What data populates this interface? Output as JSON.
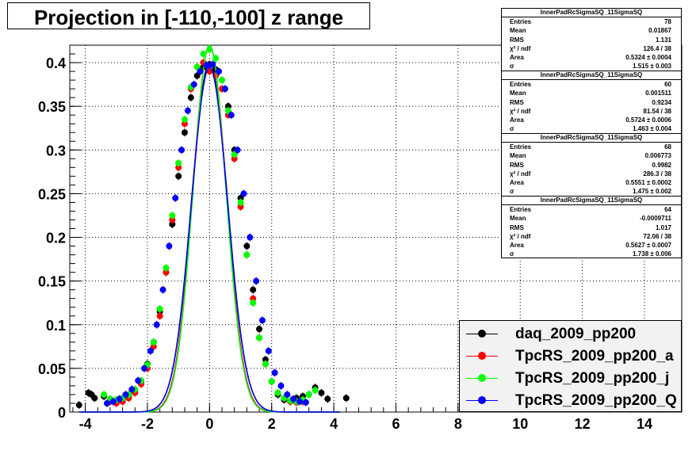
{
  "title": "Projection in [-110,-100] z range",
  "colors": {
    "black": "#000000",
    "red": "#ff0000",
    "green": "#00ff00",
    "blue": "#0000ff"
  },
  "stat_boxes": [
    {
      "header": "InnerPadRcSigmaSQ_11SigmaSQ",
      "rows": [
        [
          "Entries",
          "78"
        ],
        [
          "Mean",
          "0.01867"
        ],
        [
          "RMS",
          "1.131"
        ],
        [
          "χ² / ndf",
          "126.4 / 38"
        ],
        [
          "Area",
          "0.5324 ± 0.0004"
        ],
        [
          "σ",
          "1.515 ± 0.003"
        ]
      ]
    },
    {
      "header": "InnerPadRcSigmaSQ_11SigmaSQ",
      "rows": [
        [
          "Entries",
          "60"
        ],
        [
          "Mean",
          "0.001511"
        ],
        [
          "RMS",
          "0.9234"
        ],
        [
          "χ² / ndf",
          "81.54 / 38"
        ],
        [
          "Area",
          "0.5724 ± 0.0006"
        ],
        [
          "σ",
          "1.463 ± 0.004"
        ]
      ]
    },
    {
      "header": "InnerPadRcSigmaSQ_11SigmaSQ",
      "rows": [
        [
          "Entries",
          "68"
        ],
        [
          "Mean",
          "0.006773"
        ],
        [
          "RMS",
          "0.9982"
        ],
        [
          "χ² / ndf",
          "286.3 / 38"
        ],
        [
          "Area",
          "0.5551 ± 0.0002"
        ],
        [
          "σ",
          "1.475 ± 0.002"
        ]
      ]
    },
    {
      "header": "InnerPadRcSigmaSQ_11SigmaSQ",
      "rows": [
        [
          "Entries",
          "64"
        ],
        [
          "Mean",
          "-0.0009711"
        ],
        [
          "RMS",
          "1.017"
        ],
        [
          "χ² / ndf",
          "72.06 / 38"
        ],
        [
          "Area",
          "0.5627 ± 0.0007"
        ],
        [
          "σ",
          "1.738 ± 0.006"
        ]
      ]
    }
  ],
  "chart_data": {
    "type": "scatter",
    "title": "Projection in [-110,-100] z range",
    "xlabel": "",
    "ylabel": "",
    "xlim": [
      -4.5,
      15.2
    ],
    "ylim": [
      0,
      0.42
    ],
    "x_ticks": [
      -4,
      -2,
      0,
      2,
      4,
      6,
      8,
      10,
      12,
      14
    ],
    "y_ticks": [
      0,
      0.05,
      0.1,
      0.15,
      0.2,
      0.25,
      0.3,
      0.35,
      0.4
    ],
    "x_tick_labels": [
      "-4",
      "-2",
      "0",
      "2",
      "4",
      "6",
      "8",
      "10",
      "12",
      "14"
    ],
    "y_tick_labels": [
      "0",
      "0.05",
      "0.1",
      "0.15",
      "0.2",
      "0.25",
      "0.3",
      "0.35",
      "0.4"
    ],
    "grid": true,
    "legend_position": "bottom-right",
    "series": [
      {
        "name": "daq_2009_pp200",
        "color": "#000000",
        "fit_amplitude": 0.4,
        "fit_sigma": 0.58,
        "x": [
          -4.2,
          -3.9,
          -3.8,
          -3.7,
          -3.4,
          -3.2,
          -3.0,
          -2.8,
          -2.6,
          -2.4,
          -2.2,
          -2.0,
          -1.8,
          -1.6,
          -1.4,
          -1.2,
          -1.0,
          -0.8,
          -0.6,
          -0.4,
          -0.2,
          0.0,
          0.2,
          0.4,
          0.6,
          0.8,
          1.0,
          1.2,
          1.4,
          1.6,
          1.8,
          2.0,
          2.2,
          2.4,
          2.6,
          2.8,
          3.0,
          3.2,
          3.4,
          3.6,
          3.8,
          4.4
        ],
        "y": [
          0.008,
          0.022,
          0.02,
          0.016,
          0.018,
          0.014,
          0.012,
          0.014,
          0.018,
          0.024,
          0.035,
          0.055,
          0.08,
          0.115,
          0.16,
          0.215,
          0.27,
          0.32,
          0.36,
          0.385,
          0.395,
          0.398,
          0.392,
          0.38,
          0.35,
          0.3,
          0.245,
          0.19,
          0.14,
          0.095,
          0.06,
          0.035,
          0.02,
          0.014,
          0.012,
          0.016,
          0.018,
          0.02,
          0.028,
          0.022,
          0.015,
          0.016
        ]
      },
      {
        "name": "TpcRS_2009_pp200_a",
        "color": "#ff0000",
        "fit_amplitude": 0.42,
        "fit_sigma": 0.54,
        "x": [
          -3.2,
          -3.0,
          -2.8,
          -2.6,
          -2.4,
          -2.2,
          -2.0,
          -1.8,
          -1.6,
          -1.4,
          -1.2,
          -1.0,
          -0.8,
          -0.6,
          -0.4,
          -0.2,
          0.0,
          0.2,
          0.4,
          0.6,
          0.8,
          1.0,
          1.2,
          1.4,
          1.6,
          1.8,
          2.0,
          2.2,
          2.4,
          2.6,
          2.8,
          3.0
        ],
        "y": [
          0.012,
          0.01,
          0.012,
          0.016,
          0.022,
          0.032,
          0.05,
          0.075,
          0.11,
          0.16,
          0.22,
          0.28,
          0.33,
          0.37,
          0.395,
          0.4,
          0.39,
          0.385,
          0.37,
          0.34,
          0.29,
          0.235,
          0.18,
          0.13,
          0.085,
          0.055,
          0.035,
          0.022,
          0.016,
          0.012,
          0.011,
          0.012
        ]
      },
      {
        "name": "TpcRS_2009_pp200_j",
        "color": "#00ff00",
        "fit_amplitude": 0.42,
        "fit_sigma": 0.53,
        "x": [
          -3.4,
          -3.2,
          -3.0,
          -2.8,
          -2.6,
          -2.4,
          -2.2,
          -2.0,
          -1.8,
          -1.6,
          -1.4,
          -1.2,
          -1.0,
          -0.8,
          -0.6,
          -0.4,
          -0.2,
          0.0,
          0.2,
          0.4,
          0.6,
          0.8,
          1.0,
          1.2,
          1.4,
          1.6,
          1.8,
          2.0,
          2.2,
          2.4,
          2.6,
          2.8,
          3.0,
          3.2,
          3.4
        ],
        "y": [
          0.02,
          0.015,
          0.014,
          0.016,
          0.02,
          0.026,
          0.036,
          0.054,
          0.08,
          0.118,
          0.165,
          0.225,
          0.285,
          0.335,
          0.372,
          0.395,
          0.41,
          0.415,
          0.405,
          0.38,
          0.345,
          0.295,
          0.24,
          0.18,
          0.125,
          0.085,
          0.055,
          0.035,
          0.022,
          0.016,
          0.013,
          0.012,
          0.014,
          0.02,
          0.025
        ]
      },
      {
        "name": "TpcRS_2009_pp200_Q",
        "color": "#0000ff",
        "fit_amplitude": 0.395,
        "fit_sigma": 0.58,
        "x": [
          -3.3,
          -3.1,
          -2.9,
          -2.7,
          -2.5,
          -2.3,
          -2.1,
          -1.9,
          -1.7,
          -1.5,
          -1.3,
          -1.1,
          -0.9,
          -0.7,
          -0.5,
          -0.3,
          -0.1,
          0.1,
          0.3,
          0.5,
          0.7,
          0.9,
          1.1,
          1.3,
          1.5,
          1.7,
          1.9,
          2.1,
          2.3,
          2.5,
          2.7,
          2.9,
          3.1
        ],
        "y": [
          0.01,
          0.012,
          0.015,
          0.02,
          0.026,
          0.036,
          0.05,
          0.07,
          0.1,
          0.14,
          0.19,
          0.245,
          0.3,
          0.345,
          0.375,
          0.39,
          0.397,
          0.398,
          0.39,
          0.37,
          0.34,
          0.3,
          0.25,
          0.2,
          0.15,
          0.105,
          0.07,
          0.045,
          0.03,
          0.02,
          0.015,
          0.012,
          0.011
        ]
      }
    ]
  }
}
